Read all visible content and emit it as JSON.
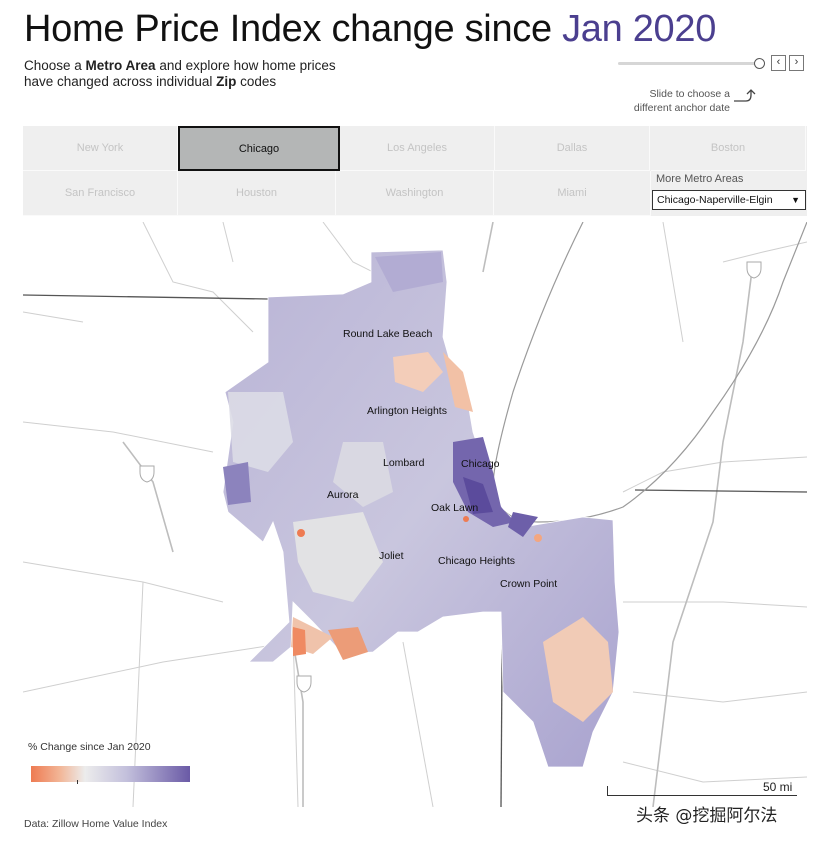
{
  "title": {
    "main": "Home Price Index change since ",
    "accent": "Jan 2020"
  },
  "subtitle": {
    "line1_a": "Choose a ",
    "line1_b": "Metro Area",
    "line1_c": " and explore how home prices",
    "line2_a": "have changed across individual ",
    "line2_b": "Zip",
    "line2_c": " codes"
  },
  "slider": {
    "hint_line1": "Slide to choose a",
    "hint_line2": "different anchor date",
    "prev_label": "‹",
    "next_label": "›",
    "position_fraction": 1.0
  },
  "metros": {
    "items": [
      "New York",
      "Chicago",
      "Los Angeles",
      "Dallas",
      "Boston",
      "San Francisco",
      "Houston",
      "Washington",
      "Miami"
    ],
    "selected": "Chicago",
    "more_label": "More Metro Areas",
    "dropdown_value": "Chicago-Naperville-Elgin"
  },
  "map": {
    "cities": [
      "Round Lake Beach",
      "Arlington Heights",
      "Lombard",
      "Chicago",
      "Aurora",
      "Oak Lawn",
      "Joliet",
      "Chicago Heights",
      "Crown Point"
    ],
    "colors": {
      "negative": "#ee7b52",
      "neutral": "#e6e6e6",
      "positive": "#6a5aa6",
      "lake": "#ffffff",
      "roads": "#cccccc"
    },
    "highway_icon": "interstate-shield-icon"
  },
  "legend": {
    "title": "% Change since Jan 2020"
  },
  "scale": {
    "label": "50 mi"
  },
  "source": "Data: Zillow Home Value Index",
  "watermark": "头条 @挖掘阿尔法"
}
